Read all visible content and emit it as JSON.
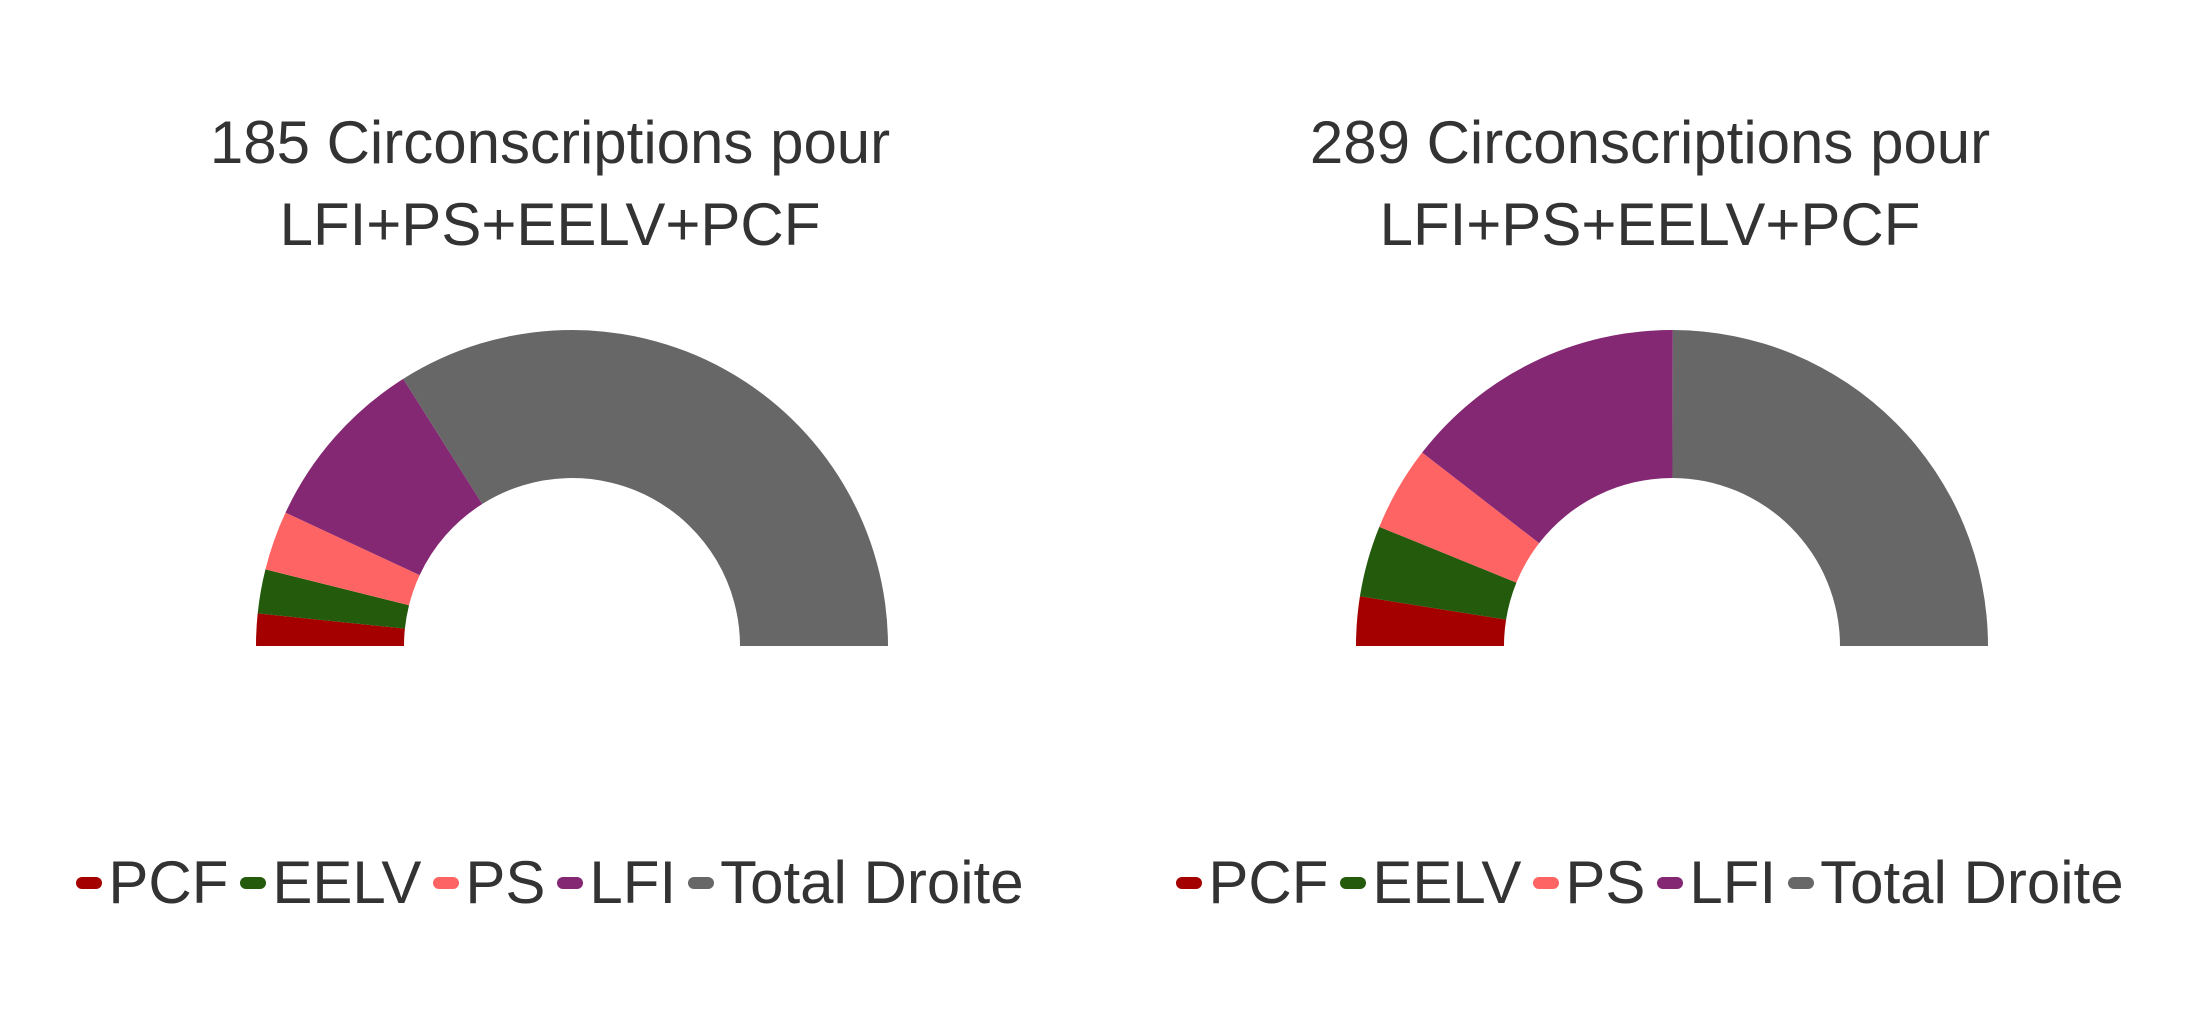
{
  "chart_data": [
    {
      "type": "pie",
      "variant": "half-donut",
      "title_lines": [
        "185 Circonscriptions pour",
        "LFI+PS+EELV+PCF"
      ],
      "legend_position": "bottom",
      "series": [
        {
          "name": "PCF",
          "value": 19,
          "color": "#A50000"
        },
        {
          "name": "EELV",
          "value": 26,
          "color": "#235A0C"
        },
        {
          "name": "PS",
          "value": 35,
          "color": "#FF6464"
        },
        {
          "name": "LFI",
          "value": 105,
          "color": "#842873"
        },
        {
          "name": "Total Droite",
          "value": 392,
          "color": "#676767"
        }
      ]
    },
    {
      "type": "pie",
      "variant": "half-donut",
      "title_lines": [
        "289 Circonscriptions pour",
        "LFI+PS+EELV+PCF"
      ],
      "legend_position": "bottom",
      "series": [
        {
          "name": "PCF",
          "value": 29,
          "color": "#A50000"
        },
        {
          "name": "EELV",
          "value": 42,
          "color": "#235A0C"
        },
        {
          "name": "PS",
          "value": 50,
          "color": "#FF6464"
        },
        {
          "name": "LFI",
          "value": 168,
          "color": "#842873"
        },
        {
          "name": "Total Droite",
          "value": 288,
          "color": "#676767"
        }
      ]
    }
  ]
}
